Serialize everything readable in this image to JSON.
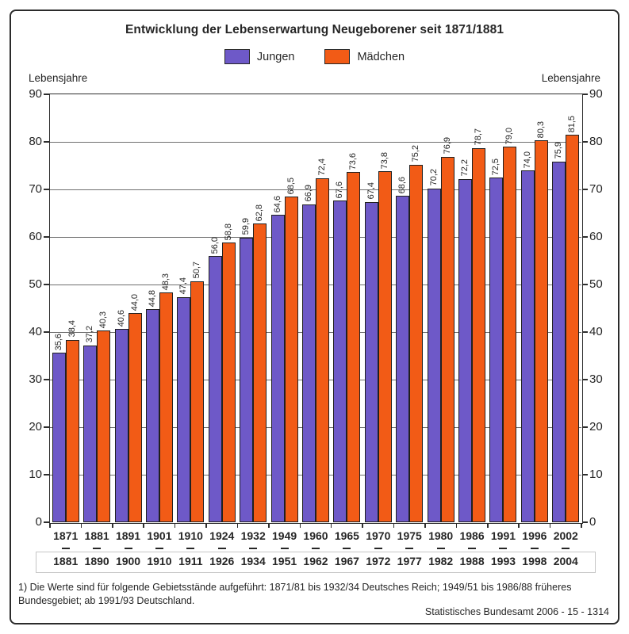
{
  "title": "Entwicklung der Lebenserwartung Neugeborener seit 1871/1881",
  "y_axis": {
    "label_left": "Lebensjahre",
    "label_right": "Lebensjahre",
    "min": 0,
    "max": 90,
    "step": 10
  },
  "footnote": "1) Die Werte sind für folgende Gebietsstände aufgeführt: 1871/81 bis 1932/34 Deutsches Reich; 1949/51 bis 1986/88 früheres Bundesgebiet; ab 1991/93 Deutschland.",
  "source": "Statistisches Bundesamt 2006 - 15 - 1314",
  "chart_data": {
    "type": "bar",
    "title": "Entwicklung der Lebenserwartung Neugeborener seit 1871/1881",
    "xlabel": "",
    "ylabel": "Lebensjahre",
    "ylim": [
      0,
      90
    ],
    "ystep": 10,
    "grid": true,
    "legend_position": "top-center",
    "value_labels": "rotated-90-above-bars, decimal comma",
    "categories": [
      {
        "from": "1871",
        "to": "1881"
      },
      {
        "from": "1881",
        "to": "1890"
      },
      {
        "from": "1891",
        "to": "1900"
      },
      {
        "from": "1901",
        "to": "1910"
      },
      {
        "from": "1910",
        "to": "1911"
      },
      {
        "from": "1924",
        "to": "1926"
      },
      {
        "from": "1932",
        "to": "1934"
      },
      {
        "from": "1949",
        "to": "1951"
      },
      {
        "from": "1960",
        "to": "1962"
      },
      {
        "from": "1965",
        "to": "1967"
      },
      {
        "from": "1970",
        "to": "1972"
      },
      {
        "from": "1975",
        "to": "1977"
      },
      {
        "from": "1980",
        "to": "1982"
      },
      {
        "from": "1986",
        "to": "1988"
      },
      {
        "from": "1991",
        "to": "1993"
      },
      {
        "from": "1996",
        "to": "1998"
      },
      {
        "from": "2002",
        "to": "2004"
      }
    ],
    "series": [
      {
        "name": "Jungen",
        "color": "#6E59C8",
        "values": [
          35.6,
          37.2,
          40.6,
          44.8,
          47.4,
          56.0,
          59.9,
          64.6,
          66.9,
          67.6,
          67.4,
          68.6,
          70.2,
          72.2,
          72.5,
          74.0,
          75.9
        ]
      },
      {
        "name": "Mädchen",
        "color": "#F25B16",
        "values": [
          38.4,
          40.3,
          44.0,
          48.3,
          50.7,
          58.8,
          62.8,
          68.5,
          72.4,
          73.6,
          73.8,
          75.2,
          76.9,
          78.7,
          79.0,
          80.3,
          81.5
        ]
      }
    ]
  }
}
